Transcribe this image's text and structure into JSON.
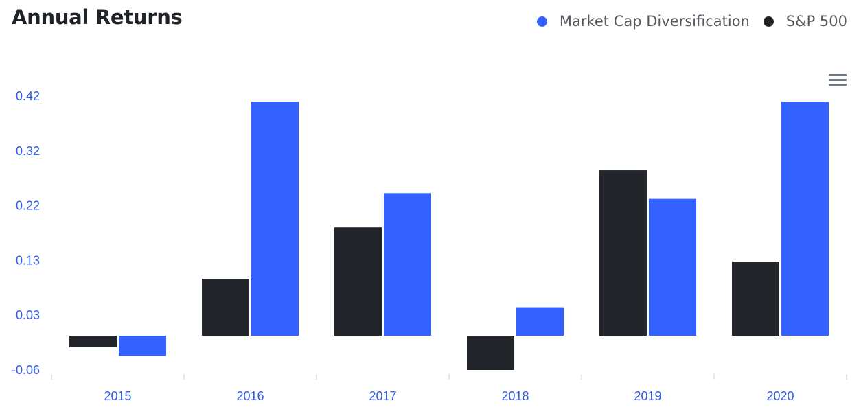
{
  "title": "Annual Returns",
  "legend": [
    {
      "label": "Market Cap Diversification",
      "color": "#3361ff"
    },
    {
      "label": "S&P 500",
      "color": "#222529"
    }
  ],
  "menu_icon": "hamburger-menu-icon",
  "chart_data": {
    "type": "bar",
    "title": "Annual Returns",
    "categories": [
      "2015",
      "2016",
      "2017",
      "2018",
      "2019",
      "2020"
    ],
    "series": [
      {
        "name": "S&P 500",
        "color": "#222529",
        "values": [
          -0.02,
          0.1,
          0.19,
          -0.06,
          0.29,
          0.13
        ]
      },
      {
        "name": "Market Cap Diversification",
        "color": "#3361ff",
        "values": [
          -0.035,
          0.41,
          0.25,
          0.05,
          0.24,
          0.41
        ]
      }
    ],
    "y_ticks": [
      "0.42",
      "0.32",
      "0.22",
      "0.13",
      "0.03",
      "-0.06"
    ],
    "ylim": [
      -0.06,
      0.42
    ],
    "xlabel": "",
    "ylabel": "",
    "grid": false,
    "legend_position": "top-right"
  }
}
